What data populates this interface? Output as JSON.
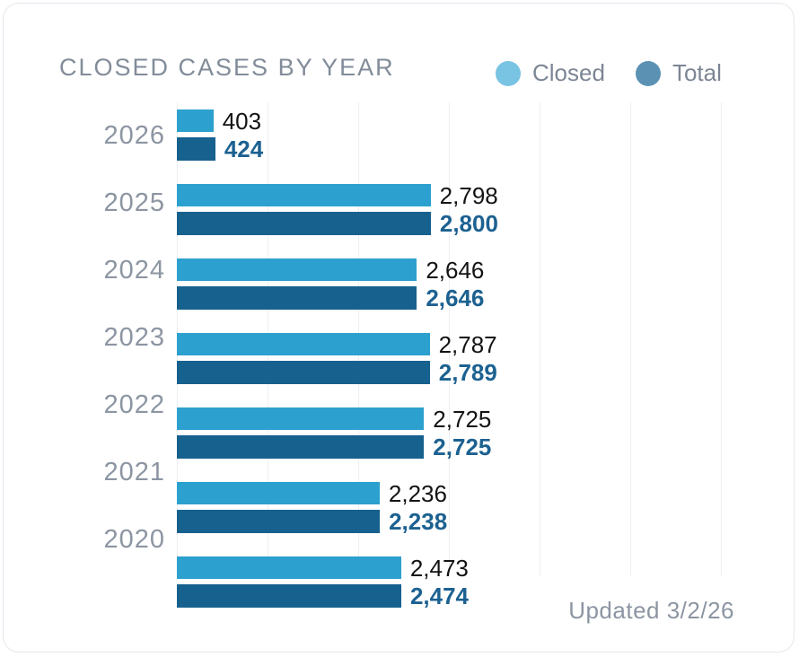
{
  "chart_data": {
    "type": "bar",
    "orientation": "horizontal",
    "title": "CLOSED CASES BY YEAR",
    "categories": [
      "2026",
      "2025",
      "2024",
      "2023",
      "2022",
      "2021",
      "2020"
    ],
    "series": [
      {
        "name": "Closed",
        "values": [
          403,
          2798,
          2646,
          2787,
          2725,
          2236,
          2473
        ],
        "color": "#2ca0ce",
        "legend_dot_color": "#79c3e3",
        "value_label_color": "#131313"
      },
      {
        "name": "Total",
        "values": [
          424,
          2800,
          2646,
          2789,
          2725,
          2238,
          2474
        ],
        "color": "#17618f",
        "legend_dot_color": "#5b92b4",
        "value_label_color": "#1c6191"
      }
    ],
    "xlim": [
      0,
      6810
    ],
    "gridline_step": 1000,
    "grid": true,
    "legend_position": "top-right",
    "value_labels": "outside-end"
  },
  "footer": {
    "updated": "Updated 3/2/26"
  }
}
